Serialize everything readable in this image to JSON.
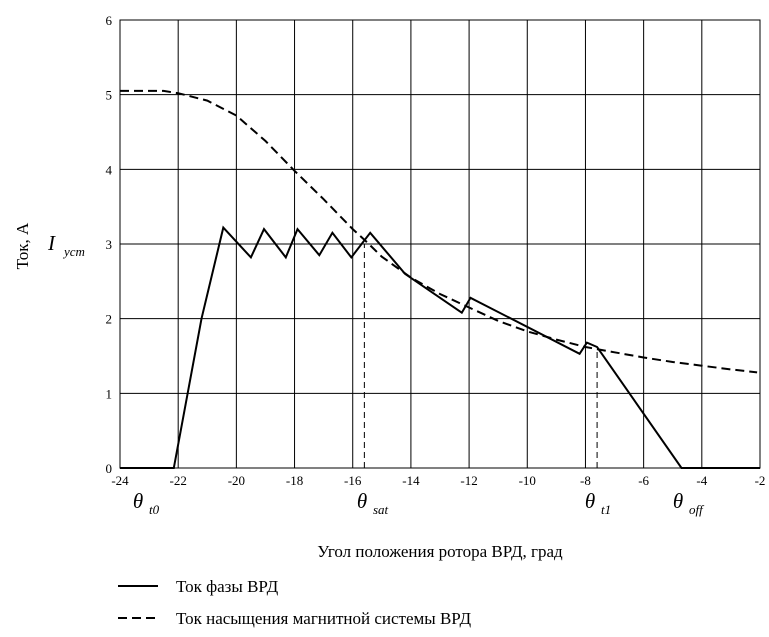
{
  "chart_data": {
    "type": "line",
    "xlabel": "Угол положения ротора ВРД, град",
    "ylabel": "Ток, А",
    "xlim": [
      -24,
      -2
    ],
    "ylim": [
      0,
      6
    ],
    "grid": true,
    "x_ticks": [
      -24,
      -22,
      -20,
      -18,
      -16,
      -14,
      -12,
      -10,
      -8,
      -6,
      -4,
      -2
    ],
    "y_ticks": [
      0,
      1,
      2,
      3,
      4,
      5,
      6
    ],
    "x_tick_labels": [
      "-24",
      "-22",
      "-20",
      "-18",
      "-16",
      "-14",
      "-12",
      "-10",
      "-8",
      "-6",
      "-4",
      "-2"
    ],
    "y_tick_labels": [
      "0",
      "1",
      "2",
      "3",
      "4",
      "5",
      "6"
    ],
    "series": [
      {
        "name": "Ток фазы ВРД",
        "style": "solid",
        "color": "#000000",
        "x": [
          -24,
          -22.15,
          -21.2,
          -20.45,
          -19.5,
          -19.05,
          -18.3,
          -17.9,
          -17.15,
          -16.7,
          -16.05,
          -15.4,
          -14.2,
          -12.25,
          -11.95,
          -8.2,
          -7.95,
          -7.6,
          -4.7,
          -2
        ],
        "y": [
          0,
          0,
          2.0,
          3.22,
          2.82,
          3.2,
          2.82,
          3.2,
          2.85,
          3.15,
          2.82,
          3.15,
          2.6,
          2.08,
          2.28,
          1.53,
          1.68,
          1.62,
          0,
          0
        ]
      },
      {
        "name": "Ток насыщения магнитной системы ВРД",
        "style": "dashed",
        "color": "#000000",
        "x": [
          -24,
          -23,
          -22.5,
          -22,
          -21,
          -20,
          -19,
          -18,
          -17,
          -16,
          -15.5,
          -15,
          -14,
          -13,
          -12,
          -11,
          -10,
          -9,
          -8,
          -7,
          -6,
          -5,
          -4,
          -3,
          -2.1
        ],
        "y": [
          5.05,
          5.05,
          5.05,
          5.02,
          4.92,
          4.72,
          4.38,
          3.98,
          3.6,
          3.2,
          3.02,
          2.83,
          2.55,
          2.33,
          2.15,
          1.97,
          1.83,
          1.72,
          1.62,
          1.55,
          1.48,
          1.42,
          1.37,
          1.32,
          1.28
        ]
      }
    ],
    "reference_lines": [
      {
        "orientation": "horizontal",
        "y": 3,
        "x_from": -24,
        "x_to": -15.6,
        "label": "I_уст",
        "style": "dashed"
      },
      {
        "orientation": "vertical",
        "x": -15.6,
        "y_from": 0,
        "y_to": 3,
        "label": "θ_sat",
        "style": "dashed"
      },
      {
        "orientation": "vertical",
        "x": -7.6,
        "y_from": 0,
        "y_to": 1.6,
        "label": "θ_t1",
        "style": "dashed"
      }
    ],
    "annotations": [
      {
        "name": "theta-t0",
        "symbol": "θ",
        "sub": "t0",
        "x": -22.5
      },
      {
        "name": "theta-sat",
        "symbol": "θ",
        "sub": "sat",
        "x": -15.6
      },
      {
        "name": "theta-t1",
        "symbol": "θ",
        "sub": "t1",
        "x": -7.6
      },
      {
        "name": "theta-off",
        "symbol": "θ",
        "sub": "off",
        "x": -4.7
      }
    ],
    "i_label": {
      "symbol": "I",
      "sub": "уст"
    },
    "legend": {
      "position": "bottom-left",
      "entries": [
        {
          "label": "Ток фазы ВРД",
          "style": "solid"
        },
        {
          "label": "Ток насыщения магнитной системы ВРД",
          "style": "dashed"
        }
      ]
    }
  }
}
